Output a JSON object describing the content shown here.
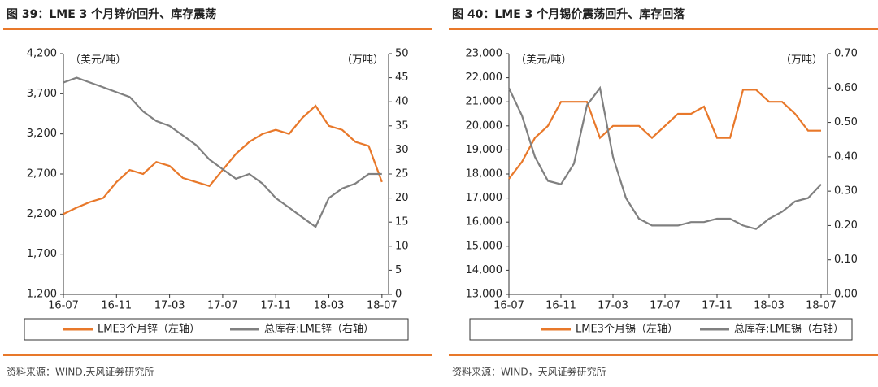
{
  "chart_data": [
    {
      "type": "line",
      "title": "图 39：LME 3 个月锌价回升、库存震荡",
      "y_label": "（美元/吨）",
      "y2_label": "（万吨）",
      "source": "资料来源：WIND,天风证券研究所",
      "x": [
        "16-07",
        "16-08",
        "16-09",
        "16-10",
        "16-11",
        "16-12",
        "17-01",
        "17-02",
        "17-03",
        "17-04",
        "17-05",
        "17-06",
        "17-07",
        "17-08",
        "17-09",
        "17-10",
        "17-11",
        "17-12",
        "18-01",
        "18-02",
        "18-03",
        "18-04",
        "18-05",
        "18-06",
        "18-07"
      ],
      "xticks": [
        "16-07",
        "16-11",
        "17-03",
        "17-07",
        "17-11",
        "18-03",
        "18-07"
      ],
      "ylim": [
        1200,
        4200
      ],
      "yticks": [
        {
          "value": 1200,
          "label": "1,200"
        },
        {
          "value": 1700,
          "label": "1,700"
        },
        {
          "value": 2200,
          "label": "2,200"
        },
        {
          "value": 2700,
          "label": "2,700"
        },
        {
          "value": 3200,
          "label": "3,200"
        },
        {
          "value": 3700,
          "label": "3,700"
        },
        {
          "value": 4200,
          "label": "4,200"
        }
      ],
      "y2lim": [
        0,
        50
      ],
      "y2ticks": [
        0,
        5,
        10,
        15,
        20,
        25,
        30,
        35,
        40,
        45,
        50
      ],
      "series": [
        {
          "name": "LME3个月锌（左轴）",
          "color": "#e8782a",
          "values": [
            2200,
            2280,
            2350,
            2400,
            2600,
            2750,
            2700,
            2850,
            2800,
            2650,
            2600,
            2550,
            2750,
            2950,
            3100,
            3200,
            3250,
            3200,
            3400,
            3550,
            3300,
            3250,
            3100,
            3050,
            2600
          ]
        },
        {
          "name": "总库存:LME锌（右轴）",
          "color": "#808080",
          "axis": "y2",
          "values": [
            44,
            45,
            44,
            43,
            42,
            41,
            38,
            36,
            35,
            33,
            31,
            28,
            26,
            24,
            25,
            23,
            20,
            18,
            16,
            14,
            20,
            22,
            23,
            25,
            25
          ]
        }
      ]
    },
    {
      "type": "line",
      "title": "图 40：LME 3 个月锡价震荡回升、库存回落",
      "y_label": "（美元/吨）",
      "y2_label": "（万吨）",
      "source": "资料来源：WIND，天风证券研究所",
      "x": [
        "16-07",
        "16-08",
        "16-09",
        "16-10",
        "16-11",
        "16-12",
        "17-01",
        "17-02",
        "17-03",
        "17-04",
        "17-05",
        "17-06",
        "17-07",
        "17-08",
        "17-09",
        "17-10",
        "17-11",
        "17-12",
        "18-01",
        "18-02",
        "18-03",
        "18-04",
        "18-05",
        "18-06",
        "18-07"
      ],
      "xticks": [
        "16-07",
        "16-11",
        "17-03",
        "17-07",
        "17-11",
        "18-03",
        "18-07"
      ],
      "ylim": [
        13000,
        23000
      ],
      "yticks": [
        {
          "value": 13000,
          "label": "13,000"
        },
        {
          "value": 14000,
          "label": "14,000"
        },
        {
          "value": 15000,
          "label": "15,000"
        },
        {
          "value": 16000,
          "label": "16,000"
        },
        {
          "value": 17000,
          "label": "17,000"
        },
        {
          "value": 18000,
          "label": "18,000"
        },
        {
          "value": 19000,
          "label": "19,000"
        },
        {
          "value": 20000,
          "label": "20,000"
        },
        {
          "value": 21000,
          "label": "21,000"
        },
        {
          "value": 22000,
          "label": "22,000"
        },
        {
          "value": 23000,
          "label": "23,000"
        }
      ],
      "y2lim": [
        0,
        0.7
      ],
      "y2ticks": [
        {
          "value": 0,
          "label": "0.00"
        },
        {
          "value": 0.1,
          "label": "0.10"
        },
        {
          "value": 0.2,
          "label": "0.20"
        },
        {
          "value": 0.3,
          "label": "0.30"
        },
        {
          "value": 0.4,
          "label": "0.40"
        },
        {
          "value": 0.5,
          "label": "0.50"
        },
        {
          "value": 0.6,
          "label": "0.60"
        },
        {
          "value": 0.7,
          "label": "0.70"
        }
      ],
      "series": [
        {
          "name": "LME3个月锡（左轴）",
          "color": "#e8782a",
          "values": [
            17800,
            18500,
            19500,
            20000,
            21000,
            21000,
            21000,
            19500,
            20000,
            20000,
            20000,
            19500,
            20000,
            20500,
            20500,
            20800,
            19500,
            19500,
            21500,
            21500,
            21000,
            21000,
            20500,
            19800,
            19800
          ]
        },
        {
          "name": "总库存:LME锡（右轴）",
          "color": "#808080",
          "axis": "y2",
          "values": [
            0.6,
            0.52,
            0.4,
            0.33,
            0.32,
            0.38,
            0.55,
            0.6,
            0.4,
            0.28,
            0.22,
            0.2,
            0.2,
            0.2,
            0.21,
            0.21,
            0.22,
            0.22,
            0.2,
            0.19,
            0.22,
            0.24,
            0.27,
            0.28,
            0.32
          ]
        }
      ]
    }
  ]
}
